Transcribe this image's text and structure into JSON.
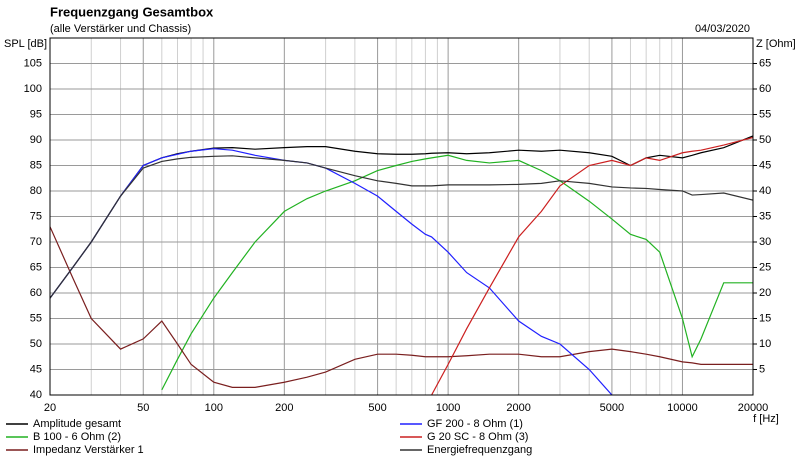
{
  "chart_data": {
    "type": "line",
    "title": "Frequenzgang Gesamtbox",
    "subtitle": "(alle Verstärker und Chassis)",
    "date": "04/03/2020",
    "y_label": "SPL [dB]",
    "y2_label": "Z [Ohm]",
    "x_label": "f [Hz]",
    "xscale": "log",
    "grid": true,
    "xlim": [
      20,
      20000
    ],
    "xticks": [
      20,
      50,
      100,
      200,
      500,
      1000,
      2000,
      5000,
      10000,
      20000
    ],
    "xminor": [
      30,
      40,
      60,
      70,
      80,
      90,
      300,
      400,
      600,
      700,
      800,
      900,
      3000,
      4000,
      6000,
      7000,
      8000,
      9000
    ],
    "ylim": [
      40,
      110
    ],
    "yticks": [
      40,
      45,
      50,
      55,
      60,
      65,
      70,
      75,
      80,
      85,
      90,
      95,
      100,
      105
    ],
    "y2lim": [
      0,
      70
    ],
    "y2ticks": [
      5,
      10,
      15,
      20,
      25,
      30,
      35,
      40,
      45,
      50,
      55,
      60,
      65
    ],
    "x": [
      20,
      25,
      30,
      40,
      50,
      60,
      70,
      80,
      100,
      120,
      150,
      200,
      250,
      300,
      400,
      500,
      600,
      700,
      800,
      850,
      1000,
      1200,
      1500,
      2000,
      2500,
      3000,
      4000,
      5000,
      6000,
      7000,
      8000,
      10000,
      11000,
      12000,
      15000,
      20000
    ],
    "series": [
      {
        "name": "Amplitude gesamt",
        "color": "#000000",
        "values": [
          59,
          65,
          70,
          79,
          85,
          86.5,
          87.3,
          87.8,
          88.4,
          88.5,
          88.2,
          88.5,
          88.7,
          88.7,
          87.8,
          87.3,
          87.2,
          87.2,
          87.3,
          87.4,
          87.5,
          87.3,
          87.5,
          88,
          87.8,
          88,
          87.5,
          86.8,
          85,
          86.5,
          87,
          86.5,
          87,
          87.5,
          88.5,
          90.8
        ]
      },
      {
        "name": "B 100 - 6 Ohm (2)",
        "color": "#22b222",
        "values": [
          null,
          null,
          null,
          null,
          null,
          41,
          47,
          52,
          59,
          64,
          70,
          76,
          78.5,
          80,
          82,
          84,
          85,
          85.8,
          86.3,
          86.5,
          87,
          86,
          85.5,
          86,
          84,
          82,
          78,
          74.5,
          71.5,
          70.5,
          68,
          55,
          47.5,
          51,
          62,
          62
        ]
      },
      {
        "name": "Impedanz Verstärker 1",
        "color": "#7a1f1f",
        "axis": "y2",
        "values": [
          33,
          23,
          15,
          9,
          11,
          14.5,
          10,
          6,
          2.5,
          1.5,
          1.5,
          2.5,
          3.5,
          4.5,
          7,
          8,
          8,
          7.8,
          7.5,
          7.5,
          7.5,
          7.7,
          8,
          8,
          7.5,
          7.5,
          8.5,
          9,
          8.5,
          8,
          7.5,
          6.5,
          6.3,
          6,
          6,
          6
        ]
      },
      {
        "name": "GF 200 - 8 Ohm (1)",
        "color": "#2020ff",
        "values": [
          59,
          65,
          70,
          79,
          85,
          86.5,
          87.2,
          87.8,
          88.3,
          88,
          87,
          86,
          85.5,
          84.5,
          81.5,
          79,
          76,
          73.5,
          71.5,
          71,
          68,
          64,
          61,
          54.5,
          51.5,
          50,
          45,
          40,
          null,
          null,
          null,
          null,
          null,
          null,
          null,
          null
        ]
      },
      {
        "name": "G 20 SC - 8 Ohm (3)",
        "color": "#cc2020",
        "values": [
          null,
          null,
          null,
          null,
          null,
          null,
          null,
          null,
          null,
          null,
          null,
          null,
          null,
          null,
          null,
          null,
          null,
          null,
          null,
          40,
          46,
          53,
          61,
          71,
          76,
          81,
          85,
          86,
          85,
          86.5,
          86,
          87.5,
          87.8,
          88,
          89,
          90.5
        ]
      },
      {
        "name": "Energiefrequenzgang",
        "color": "#333333",
        "values": [
          59,
          65,
          70,
          79,
          84.5,
          85.8,
          86.3,
          86.6,
          86.8,
          86.9,
          86.5,
          86,
          85.5,
          84.5,
          83,
          82,
          81.5,
          81,
          81,
          81,
          81.2,
          81.2,
          81.2,
          81.3,
          81.5,
          82,
          81.5,
          80.8,
          80.6,
          80.5,
          80.3,
          80,
          79.2,
          79.3,
          79.6,
          78.2
        ]
      }
    ]
  }
}
